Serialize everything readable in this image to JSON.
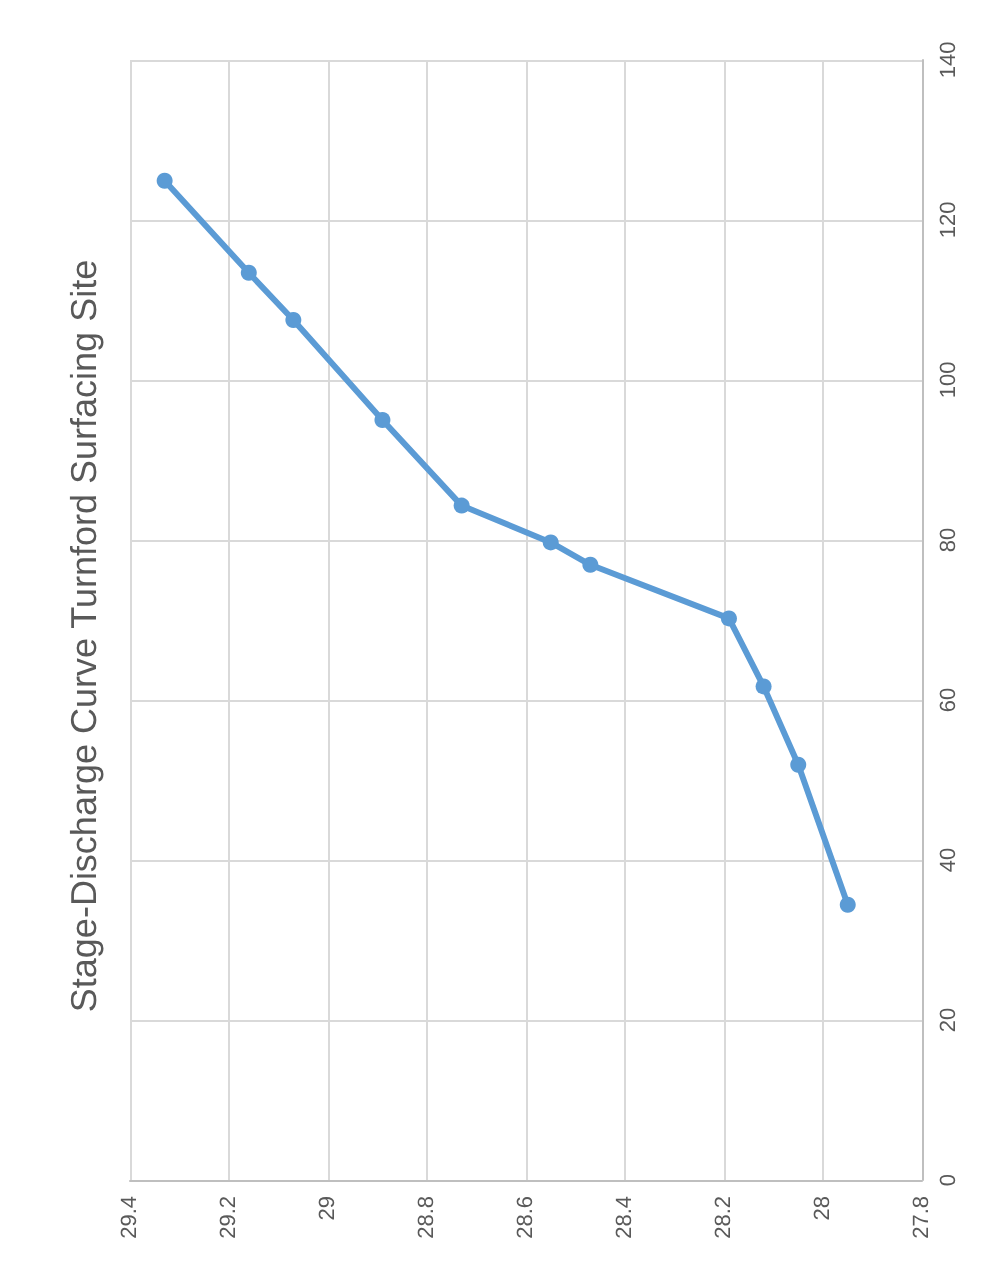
{
  "chart_data": {
    "type": "line",
    "title": "Stage-Discharge Curve Turnford Surfacing Site",
    "x": [
      27.95,
      28.05,
      28.12,
      28.19,
      28.47,
      28.55,
      28.73,
      28.89,
      29.07,
      29.16,
      29.33
    ],
    "series": [
      {
        "color": "#5b9bd5",
        "values": [
          34.4,
          51.9,
          61.7,
          70.2,
          76.9,
          79.7,
          84.3,
          95.0,
          107.5,
          113.4,
          124.9
        ]
      }
    ],
    "xlim": [
      29.4,
      27.8
    ],
    "xticks": [
      29.4,
      29.2,
      29,
      28.8,
      28.6,
      28.4,
      28.2,
      28,
      27.8
    ],
    "ylim": [
      0,
      140
    ],
    "yticks": [
      0,
      20,
      40,
      60,
      80,
      100,
      120,
      140
    ],
    "grid": true,
    "marker": "circle",
    "line_style": "solid"
  }
}
